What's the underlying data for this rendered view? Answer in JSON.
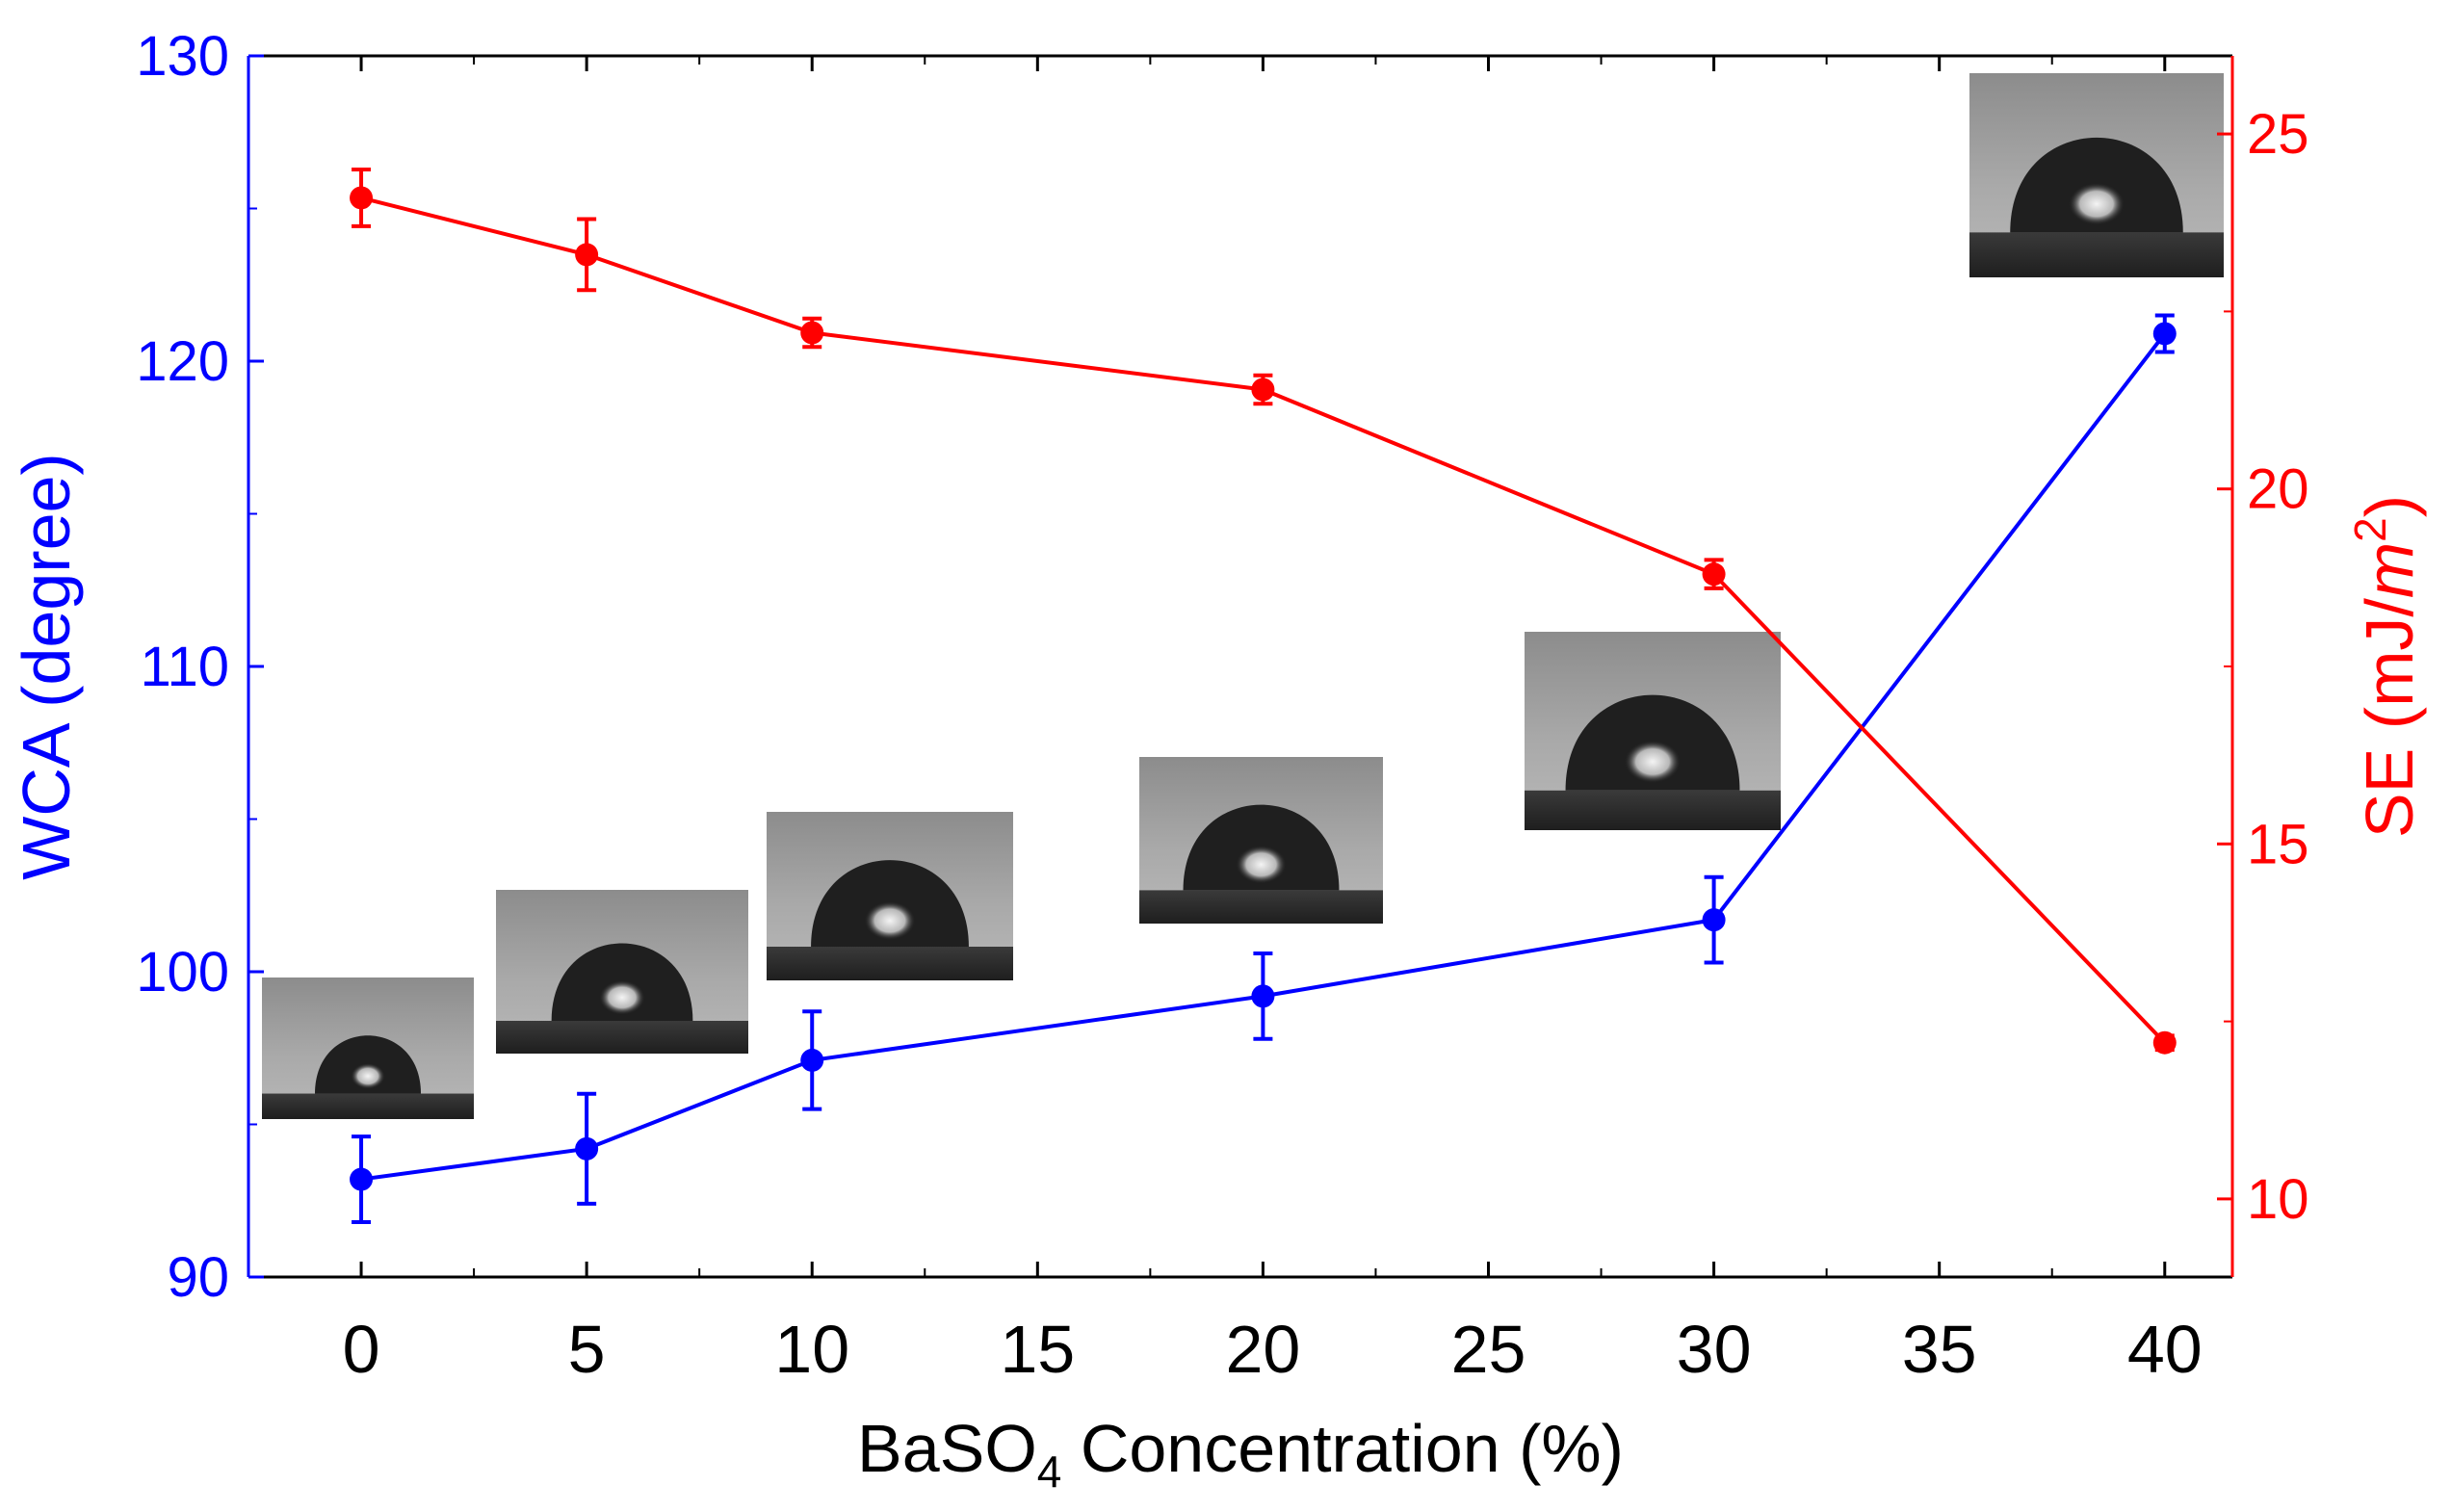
{
  "chart_data": {
    "type": "line",
    "title": "",
    "xlabel": {
      "prefix": "BaSO",
      "subscript": "4",
      "suffix": " Concentration (%)"
    },
    "ylabel_left": "WCA (degree)",
    "ylabel_right": {
      "prefix": "SE (mJ/",
      "italic": "m",
      "superscript": "2",
      "suffix": ")"
    },
    "xlim": [
      -2.5,
      41.5
    ],
    "x_ticks": [
      0,
      5,
      10,
      15,
      20,
      25,
      30,
      35,
      40
    ],
    "ylim_left": [
      90,
      130
    ],
    "y_ticks_left": [
      90,
      100,
      110,
      120,
      130
    ],
    "ylim_right": [
      8.9,
      26.1
    ],
    "y_ticks_right": [
      10,
      15,
      20,
      25
    ],
    "colors": {
      "wca": "#0000ff",
      "se": "#ff0000",
      "axis": "#000000"
    },
    "series": [
      {
        "name": "WCA",
        "axis": "left",
        "x": [
          0,
          5,
          10,
          20,
          30,
          40
        ],
        "values": [
          93.2,
          94.2,
          97.1,
          99.2,
          101.7,
          120.9
        ],
        "errors": [
          1.4,
          1.8,
          1.6,
          1.4,
          1.4,
          0.6
        ]
      },
      {
        "name": "SE",
        "axis": "right",
        "x": [
          0,
          5,
          10,
          20,
          30,
          40
        ],
        "values": [
          24.1,
          23.3,
          22.2,
          21.4,
          18.8,
          12.2
        ],
        "errors": [
          0.4,
          0.5,
          0.2,
          0.2,
          0.2,
          0.1
        ]
      }
    ],
    "droplet_images": [
      {
        "name": "droplet-0pct",
        "x_value": 0
      },
      {
        "name": "droplet-5pct",
        "x_value": 5
      },
      {
        "name": "droplet-10pct",
        "x_value": 10
      },
      {
        "name": "droplet-20pct",
        "x_value": 20
      },
      {
        "name": "droplet-30pct",
        "x_value": 30
      },
      {
        "name": "droplet-40pct",
        "x_value": 40
      }
    ]
  }
}
